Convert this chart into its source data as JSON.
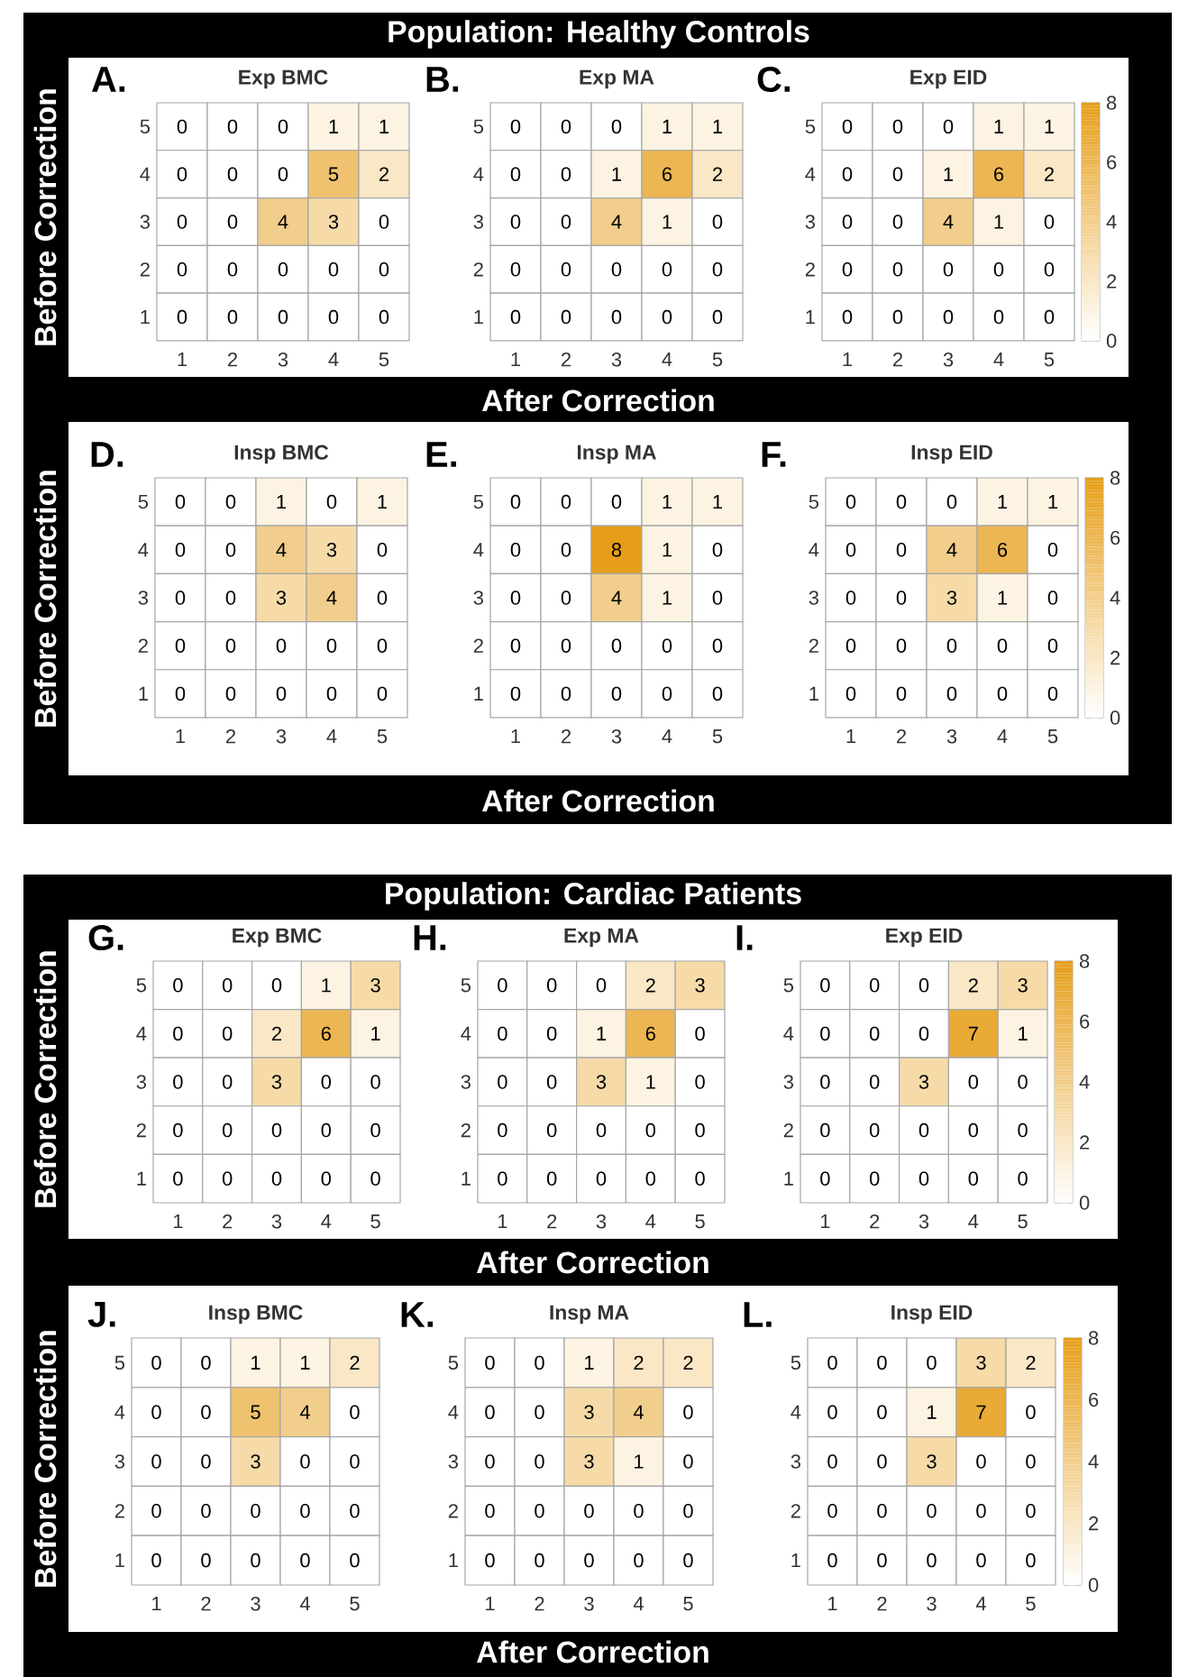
{
  "chart_data": [
    {
      "type": "heatmap",
      "title": "Exp BMC",
      "ylabel": "Before Correction",
      "annotations": [
        "Population: Healthy Controls",
        "A."
      ],
      "data_labels": true,
      "categories": [
        "1",
        "2",
        "3",
        "4",
        "5"
      ],
      "y_categories": [
        "5",
        "4",
        "3",
        "2",
        "1"
      ],
      "cells": [
        [
          0,
          0,
          0,
          1,
          1
        ],
        [
          0,
          0,
          0,
          5,
          2
        ],
        [
          0,
          0,
          4,
          3,
          0
        ],
        [
          0,
          0,
          0,
          0,
          0
        ],
        [
          0,
          0,
          0,
          0,
          0
        ]
      ]
    },
    {
      "type": "heatmap",
      "title": "Exp MA",
      "xlabel": "After Correction",
      "annotations": [
        "B."
      ],
      "data_labels": true,
      "categories": [
        "1",
        "2",
        "3",
        "4",
        "5"
      ],
      "y_categories": [
        "5",
        "4",
        "3",
        "2",
        "1"
      ],
      "cells": [
        [
          0,
          0,
          0,
          1,
          1
        ],
        [
          0,
          0,
          1,
          6,
          2
        ],
        [
          0,
          0,
          4,
          1,
          0
        ],
        [
          0,
          0,
          0,
          0,
          0
        ],
        [
          0,
          0,
          0,
          0,
          0
        ]
      ]
    },
    {
      "type": "heatmap",
      "title": "Exp EID",
      "annotations": [
        "C."
      ],
      "data_labels": true,
      "categories": [
        "1",
        "2",
        "3",
        "4",
        "5"
      ],
      "y_categories": [
        "5",
        "4",
        "3",
        "2",
        "1"
      ],
      "clim": [
        0,
        8
      ],
      "cticks": [
        0,
        2,
        4,
        6,
        8
      ],
      "cells": [
        [
          0,
          0,
          0,
          1,
          1
        ],
        [
          0,
          0,
          1,
          6,
          2
        ],
        [
          0,
          0,
          4,
          1,
          0
        ],
        [
          0,
          0,
          0,
          0,
          0
        ],
        [
          0,
          0,
          0,
          0,
          0
        ]
      ]
    },
    {
      "type": "heatmap",
      "title": "Insp BMC",
      "ylabel": "Before Correction",
      "annotations": [
        "D."
      ],
      "data_labels": true,
      "categories": [
        "1",
        "2",
        "3",
        "4",
        "5"
      ],
      "y_categories": [
        "5",
        "4",
        "3",
        "2",
        "1"
      ],
      "cells": [
        [
          0,
          0,
          1,
          0,
          1
        ],
        [
          0,
          0,
          4,
          3,
          0
        ],
        [
          0,
          0,
          3,
          4,
          0
        ],
        [
          0,
          0,
          0,
          0,
          0
        ],
        [
          0,
          0,
          0,
          0,
          0
        ]
      ]
    },
    {
      "type": "heatmap",
      "title": "Insp MA",
      "xlabel": "After Correction",
      "annotations": [
        "E."
      ],
      "data_labels": true,
      "categories": [
        "1",
        "2",
        "3",
        "4",
        "5"
      ],
      "y_categories": [
        "5",
        "4",
        "3",
        "2",
        "1"
      ],
      "cells": [
        [
          0,
          0,
          0,
          1,
          1
        ],
        [
          0,
          0,
          8,
          1,
          0
        ],
        [
          0,
          0,
          4,
          1,
          0
        ],
        [
          0,
          0,
          0,
          0,
          0
        ],
        [
          0,
          0,
          0,
          0,
          0
        ]
      ]
    },
    {
      "type": "heatmap",
      "title": "Insp EID",
      "annotations": [
        "F."
      ],
      "data_labels": true,
      "categories": [
        "1",
        "2",
        "3",
        "4",
        "5"
      ],
      "y_categories": [
        "5",
        "4",
        "3",
        "2",
        "1"
      ],
      "clim": [
        0,
        8
      ],
      "cticks": [
        0,
        2,
        4,
        6,
        8
      ],
      "cells": [
        [
          0,
          0,
          0,
          1,
          1
        ],
        [
          0,
          0,
          4,
          6,
          0
        ],
        [
          0,
          0,
          3,
          1,
          0
        ],
        [
          0,
          0,
          0,
          0,
          0
        ],
        [
          0,
          0,
          0,
          0,
          0
        ]
      ]
    },
    {
      "type": "heatmap",
      "title": "Exp BMC",
      "ylabel": "Before Correction",
      "annotations": [
        "Population: Cardiac Patients",
        "G."
      ],
      "data_labels": true,
      "categories": [
        "1",
        "2",
        "3",
        "4",
        "5"
      ],
      "y_categories": [
        "5",
        "4",
        "3",
        "2",
        "1"
      ],
      "cells": [
        [
          0,
          0,
          0,
          1,
          3
        ],
        [
          0,
          0,
          2,
          6,
          1
        ],
        [
          0,
          0,
          3,
          0,
          0
        ],
        [
          0,
          0,
          0,
          0,
          0
        ],
        [
          0,
          0,
          0,
          0,
          0
        ]
      ]
    },
    {
      "type": "heatmap",
      "title": "Exp MA",
      "xlabel": "After Correction",
      "annotations": [
        "H."
      ],
      "data_labels": true,
      "categories": [
        "1",
        "2",
        "3",
        "4",
        "5"
      ],
      "y_categories": [
        "5",
        "4",
        "3",
        "2",
        "1"
      ],
      "cells": [
        [
          0,
          0,
          0,
          2,
          3
        ],
        [
          0,
          0,
          1,
          6,
          0
        ],
        [
          0,
          0,
          3,
          1,
          0
        ],
        [
          0,
          0,
          0,
          0,
          0
        ],
        [
          0,
          0,
          0,
          0,
          0
        ]
      ]
    },
    {
      "type": "heatmap",
      "title": "Exp EID",
      "annotations": [
        "I."
      ],
      "data_labels": true,
      "categories": [
        "1",
        "2",
        "3",
        "4",
        "5"
      ],
      "y_categories": [
        "5",
        "4",
        "3",
        "2",
        "1"
      ],
      "clim": [
        0,
        8
      ],
      "cticks": [
        0,
        2,
        4,
        6,
        8
      ],
      "cells": [
        [
          0,
          0,
          0,
          2,
          3
        ],
        [
          0,
          0,
          0,
          7,
          1
        ],
        [
          0,
          0,
          3,
          0,
          0
        ],
        [
          0,
          0,
          0,
          0,
          0
        ],
        [
          0,
          0,
          0,
          0,
          0
        ]
      ]
    },
    {
      "type": "heatmap",
      "title": "Insp BMC",
      "ylabel": "Before Correction",
      "annotations": [
        "J."
      ],
      "data_labels": true,
      "categories": [
        "1",
        "2",
        "3",
        "4",
        "5"
      ],
      "y_categories": [
        "5",
        "4",
        "3",
        "2",
        "1"
      ],
      "cells": [
        [
          0,
          0,
          1,
          1,
          2
        ],
        [
          0,
          0,
          5,
          4,
          0
        ],
        [
          0,
          0,
          3,
          0,
          0
        ],
        [
          0,
          0,
          0,
          0,
          0
        ],
        [
          0,
          0,
          0,
          0,
          0
        ]
      ]
    },
    {
      "type": "heatmap",
      "title": "Insp MA",
      "xlabel": "After Correction",
      "annotations": [
        "K."
      ],
      "data_labels": true,
      "categories": [
        "1",
        "2",
        "3",
        "4",
        "5"
      ],
      "y_categories": [
        "5",
        "4",
        "3",
        "2",
        "1"
      ],
      "cells": [
        [
          0,
          0,
          1,
          2,
          2
        ],
        [
          0,
          0,
          3,
          4,
          0
        ],
        [
          0,
          0,
          3,
          1,
          0
        ],
        [
          0,
          0,
          0,
          0,
          0
        ],
        [
          0,
          0,
          0,
          0,
          0
        ]
      ]
    },
    {
      "type": "heatmap",
      "title": "Insp EID",
      "annotations": [
        "L."
      ],
      "data_labels": true,
      "categories": [
        "1",
        "2",
        "3",
        "4",
        "5"
      ],
      "y_categories": [
        "5",
        "4",
        "3",
        "2",
        "1"
      ],
      "clim": [
        0,
        8
      ],
      "cticks": [
        0,
        2,
        4,
        6,
        8
      ],
      "cells": [
        [
          0,
          0,
          0,
          3,
          2
        ],
        [
          0,
          0,
          1,
          7,
          0
        ],
        [
          0,
          0,
          3,
          0,
          0
        ],
        [
          0,
          0,
          0,
          0,
          0
        ],
        [
          0,
          0,
          0,
          0,
          0
        ]
      ]
    }
  ]
}
